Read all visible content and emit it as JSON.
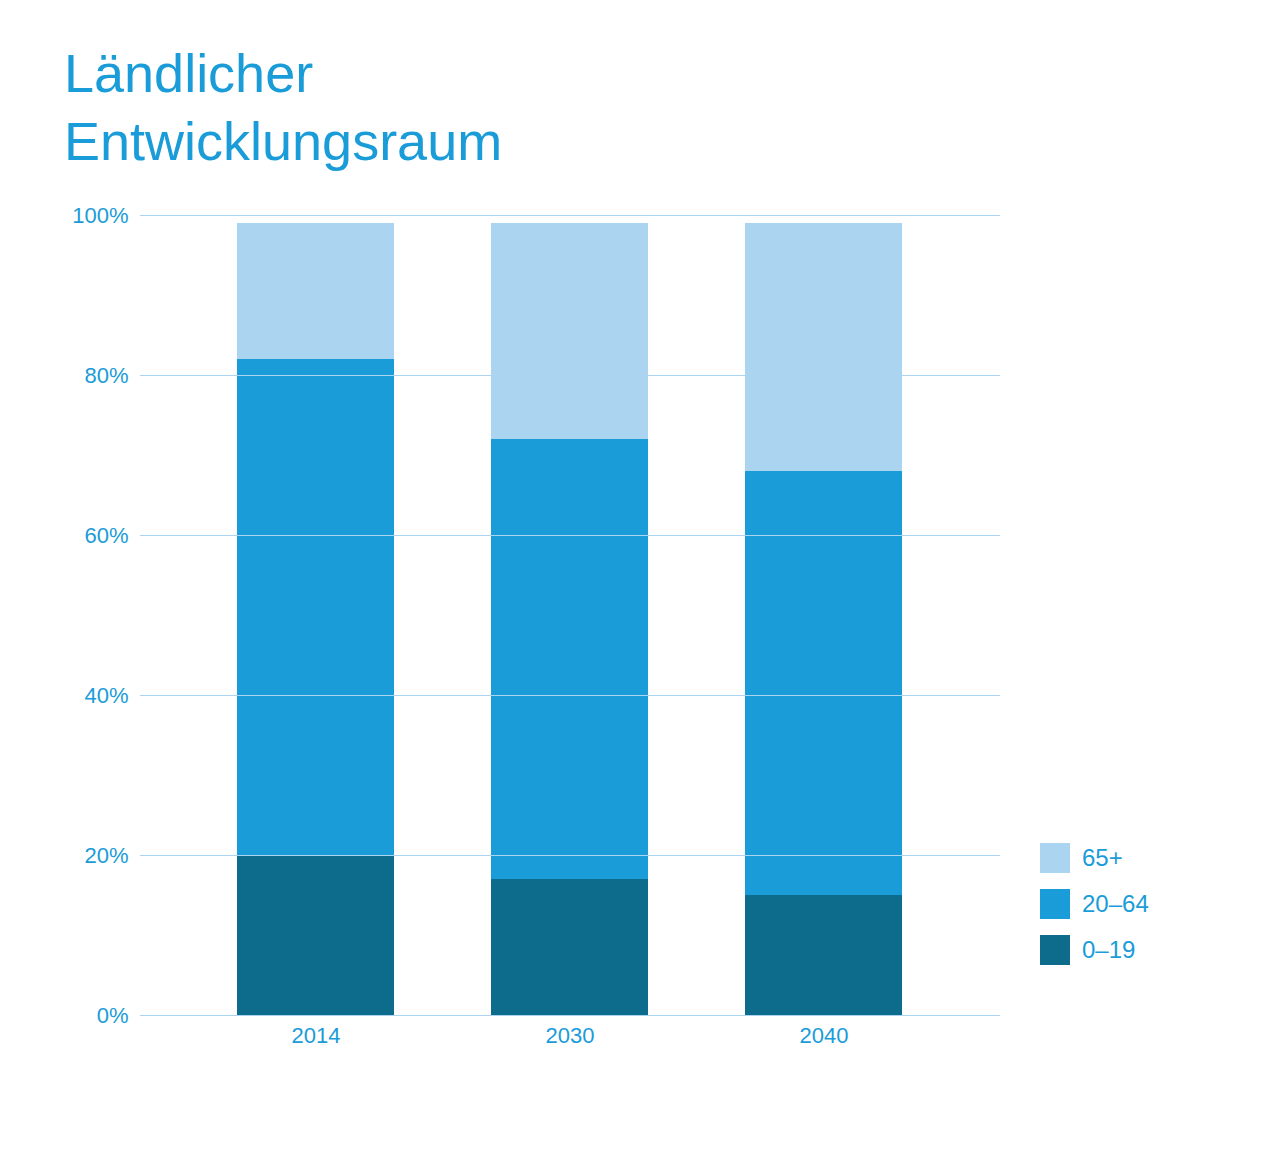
{
  "chart_data": {
    "type": "bar",
    "stacked": true,
    "title": "Ländlicher\nEntwicklungsraum",
    "categories": [
      "2014",
      "2030",
      "2040"
    ],
    "series": [
      {
        "name": "0–19",
        "color": "#0d6b8c",
        "values": [
          20,
          17,
          15
        ]
      },
      {
        "name": "20–64",
        "color": "#1a9cd8",
        "values": [
          62,
          55,
          53
        ]
      },
      {
        "name": "65+",
        "color": "#aad4ef",
        "values": [
          17,
          27,
          31
        ]
      }
    ],
    "ylim": [
      0,
      100
    ],
    "yticks": [
      {
        "value": 0,
        "label": "0%"
      },
      {
        "value": 20,
        "label": "20%"
      },
      {
        "value": 40,
        "label": "40%"
      },
      {
        "value": 60,
        "label": "60%"
      },
      {
        "value": 80,
        "label": "80%"
      },
      {
        "value": 100,
        "label": "100%"
      }
    ],
    "grid": true,
    "legend": "right"
  }
}
